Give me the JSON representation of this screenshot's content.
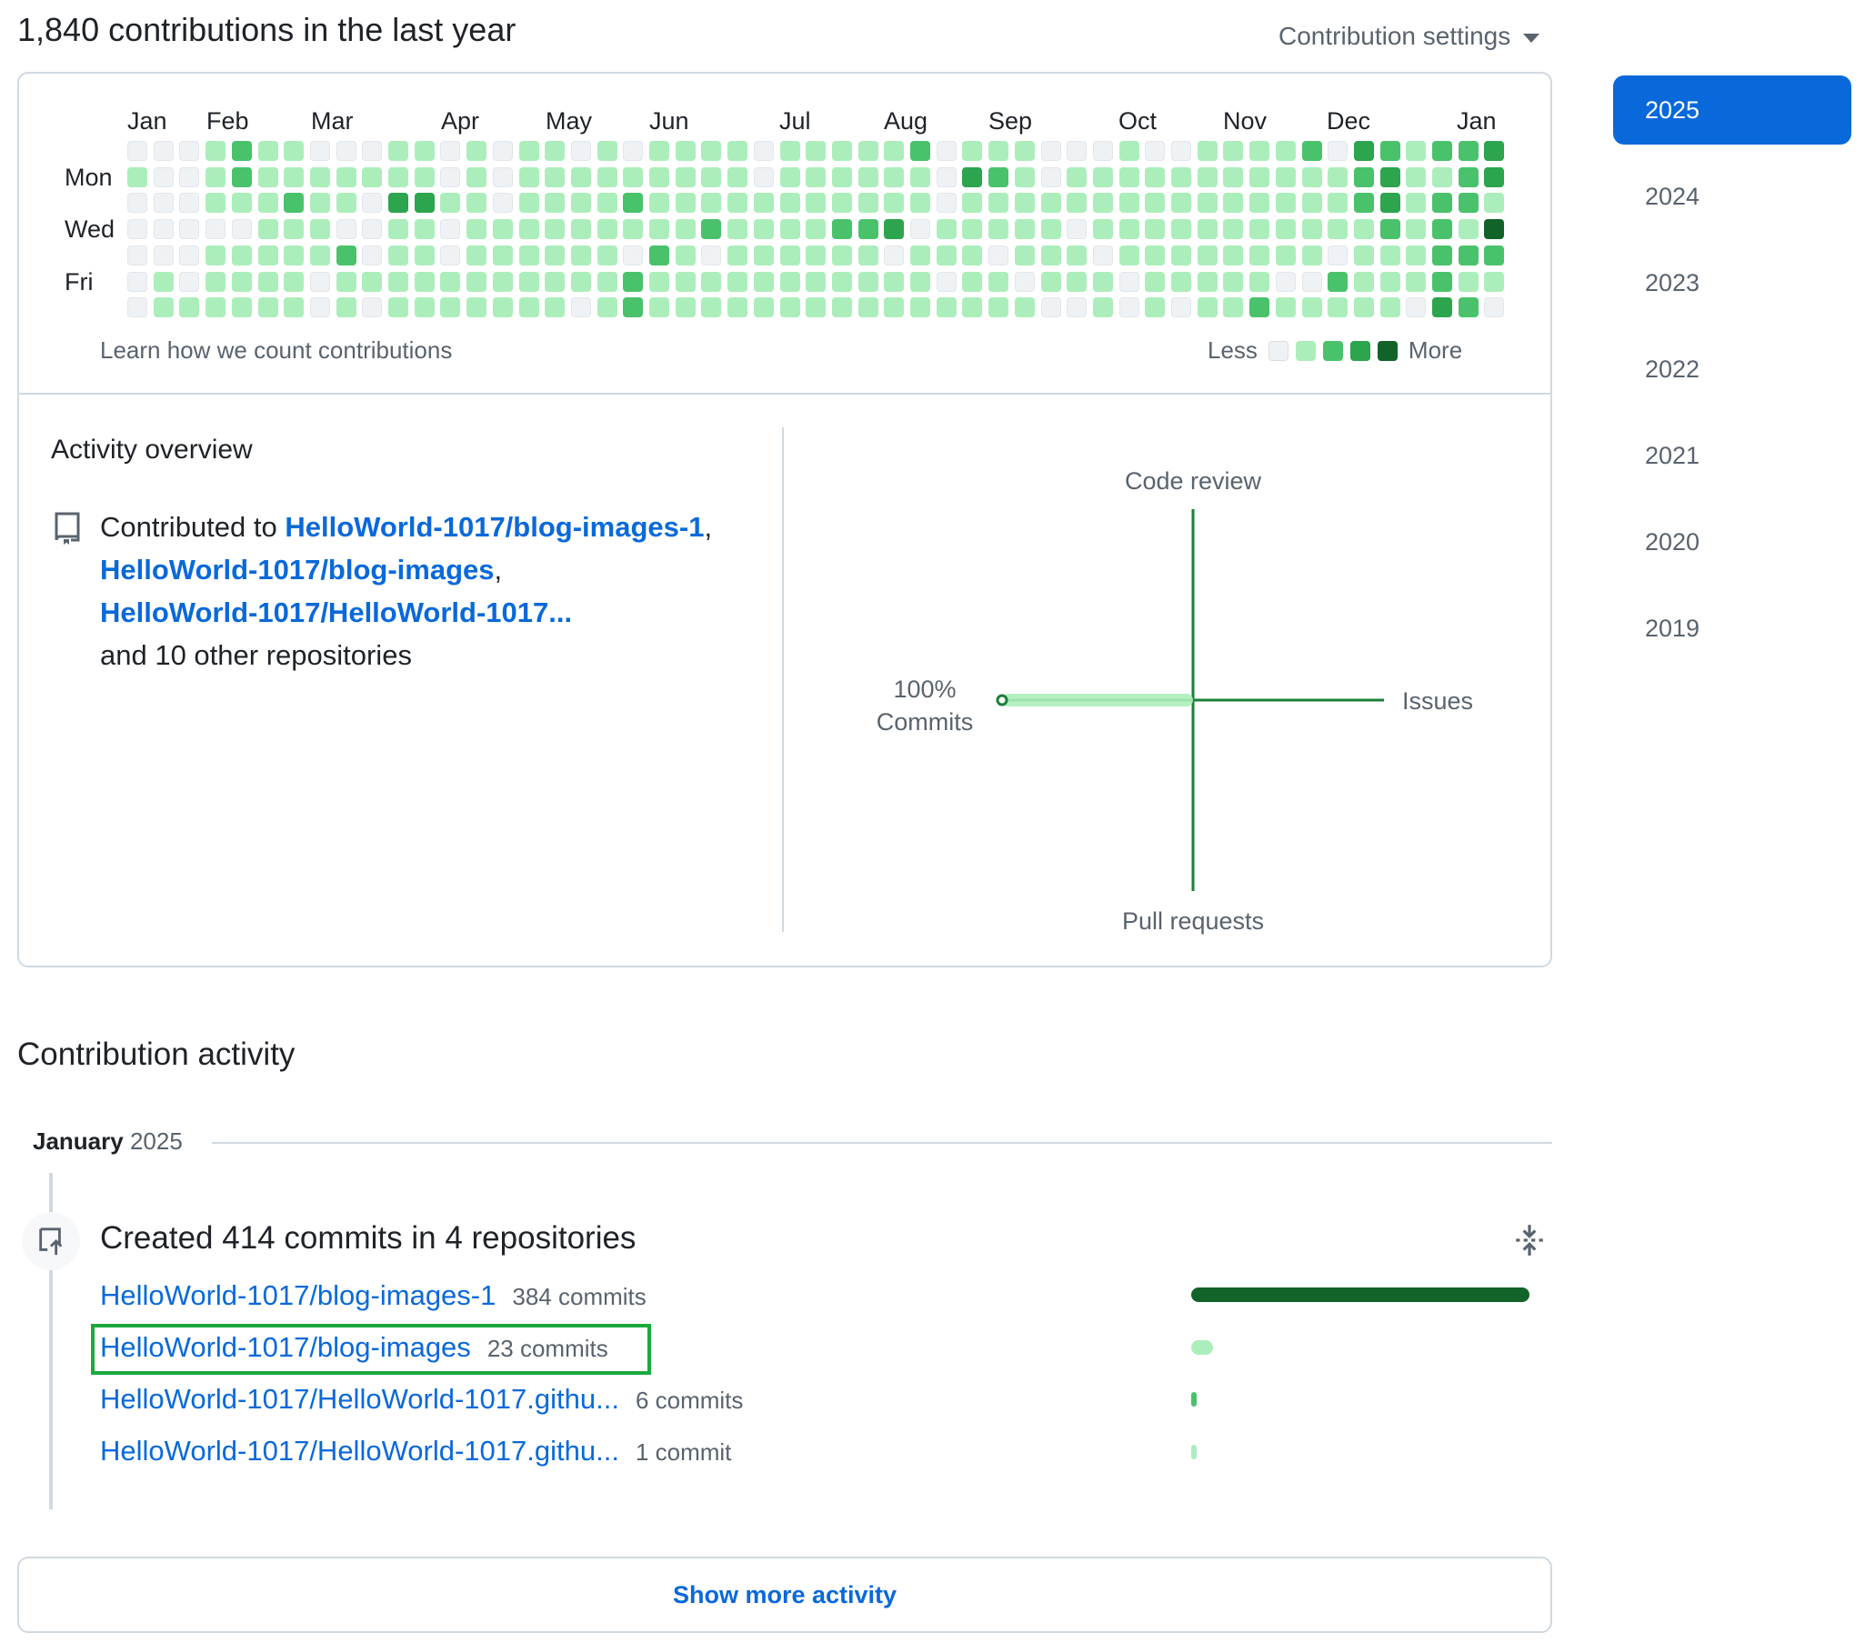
{
  "header": {
    "title": "1,840 contributions in the last year",
    "settings_label": "Contribution settings"
  },
  "calendar": {
    "months": [
      "Jan",
      "Feb",
      "Mar",
      "Apr",
      "May",
      "Jun",
      "Jul",
      "Aug",
      "Sep",
      "Oct",
      "Nov",
      "Dec",
      "Jan"
    ],
    "day_labels": [
      "Mon",
      "Wed",
      "Fri"
    ],
    "learn_link": "Learn how we count contributions",
    "legend_less": "Less",
    "legend_more": "More",
    "level_colors": [
      "#eff2f5",
      "#aceebb",
      "#4ac26b",
      "#2da44e",
      "#116329"
    ],
    "levels": [
      [
        0,
        1,
        0,
        0,
        0,
        0,
        0
      ],
      [
        0,
        0,
        0,
        0,
        0,
        1,
        1
      ],
      [
        0,
        0,
        0,
        0,
        0,
        0,
        1
      ],
      [
        1,
        1,
        1,
        0,
        1,
        1,
        1
      ],
      [
        2,
        2,
        1,
        0,
        1,
        1,
        1
      ],
      [
        1,
        1,
        1,
        1,
        1,
        1,
        1
      ],
      [
        1,
        1,
        2,
        1,
        1,
        1,
        1
      ],
      [
        0,
        1,
        1,
        1,
        1,
        0,
        0
      ],
      [
        0,
        1,
        1,
        0,
        2,
        1,
        1
      ],
      [
        0,
        1,
        0,
        0,
        0,
        1,
        0
      ],
      [
        1,
        1,
        3,
        1,
        1,
        1,
        1
      ],
      [
        1,
        1,
        3,
        1,
        1,
        1,
        1
      ],
      [
        0,
        0,
        1,
        0,
        0,
        1,
        1
      ],
      [
        1,
        1,
        1,
        1,
        1,
        1,
        1
      ],
      [
        0,
        0,
        0,
        1,
        1,
        1,
        1
      ],
      [
        1,
        1,
        1,
        1,
        1,
        1,
        1
      ],
      [
        1,
        1,
        1,
        1,
        1,
        1,
        1
      ],
      [
        0,
        1,
        1,
        1,
        1,
        1,
        0
      ],
      [
        1,
        1,
        1,
        1,
        1,
        1,
        1
      ],
      [
        0,
        1,
        2,
        1,
        0,
        2,
        2
      ],
      [
        1,
        1,
        1,
        1,
        2,
        1,
        1
      ],
      [
        1,
        1,
        1,
        1,
        1,
        1,
        1
      ],
      [
        1,
        1,
        1,
        2,
        0,
        1,
        1
      ],
      [
        1,
        1,
        1,
        1,
        1,
        1,
        1
      ],
      [
        0,
        0,
        1,
        1,
        1,
        1,
        1
      ],
      [
        1,
        1,
        1,
        1,
        1,
        1,
        1
      ],
      [
        1,
        1,
        1,
        1,
        1,
        1,
        1
      ],
      [
        1,
        1,
        1,
        2,
        1,
        1,
        1
      ],
      [
        1,
        1,
        1,
        2,
        1,
        1,
        1
      ],
      [
        1,
        1,
        1,
        3,
        0,
        1,
        1
      ],
      [
        2,
        1,
        1,
        0,
        1,
        1,
        1
      ],
      [
        0,
        0,
        0,
        1,
        1,
        0,
        1
      ],
      [
        1,
        3,
        1,
        1,
        1,
        1,
        1
      ],
      [
        1,
        2,
        1,
        1,
        0,
        1,
        1
      ],
      [
        1,
        1,
        1,
        1,
        1,
        0,
        1
      ],
      [
        0,
        0,
        1,
        1,
        1,
        1,
        0
      ],
      [
        0,
        1,
        1,
        0,
        1,
        1,
        0
      ],
      [
        0,
        1,
        1,
        1,
        0,
        1,
        1
      ],
      [
        1,
        1,
        1,
        1,
        1,
        0,
        0
      ],
      [
        0,
        1,
        1,
        1,
        1,
        1,
        1
      ],
      [
        0,
        1,
        1,
        1,
        1,
        1,
        0
      ],
      [
        1,
        1,
        1,
        1,
        1,
        1,
        1
      ],
      [
        1,
        1,
        1,
        1,
        1,
        1,
        1
      ],
      [
        1,
        1,
        1,
        1,
        1,
        1,
        2
      ],
      [
        1,
        1,
        1,
        1,
        1,
        0,
        1
      ],
      [
        2,
        1,
        1,
        1,
        1,
        0,
        1
      ],
      [
        0,
        1,
        1,
        1,
        0,
        2,
        1
      ],
      [
        3,
        2,
        2,
        1,
        1,
        1,
        1
      ],
      [
        2,
        3,
        3,
        2,
        1,
        1,
        1
      ],
      [
        1,
        1,
        1,
        1,
        1,
        1,
        0
      ],
      [
        2,
        1,
        2,
        2,
        2,
        2,
        3
      ],
      [
        2,
        2,
        2,
        1,
        2,
        1,
        2
      ],
      [
        3,
        3,
        1,
        4,
        2,
        1,
        0
      ]
    ]
  },
  "activity_overview": {
    "title": "Activity overview",
    "prefix": "Contributed to",
    "repo1": "HelloWorld-1017/blog-images-1",
    "repo2": "HelloWorld-1017/blog-images",
    "repo3": "HelloWorld-1017/HelloWorld-1017...",
    "others": "and 10 other repositories",
    "radar": {
      "top": "Code review",
      "right": "Issues",
      "bottom": "Pull requests",
      "left_pct": "100%",
      "left_label": "Commits",
      "commits_pct": 100,
      "issues_pct": 0,
      "code_review_pct": 0,
      "pull_requests_pct": 0
    }
  },
  "contribution_activity": {
    "title": "Contribution activity",
    "month": "January",
    "year": "2025",
    "commits_summary": "Created 414 commits in 4 repositories",
    "repos": [
      {
        "name": "HelloWorld-1017/blog-images-1",
        "count": "384 commits",
        "value": 384
      },
      {
        "name": "HelloWorld-1017/blog-images",
        "count": "23 commits",
        "value": 23
      },
      {
        "name": "HelloWorld-1017/HelloWorld-1017.githu...",
        "count": "6 commits",
        "value": 6
      },
      {
        "name": "HelloWorld-1017/HelloWorld-1017.githu...",
        "count": "1 commit",
        "value": 1
      }
    ],
    "show_more": "Show more activity"
  },
  "years": [
    "2025",
    "2024",
    "2023",
    "2022",
    "2021",
    "2020",
    "2019"
  ],
  "selected_year": "2025"
}
